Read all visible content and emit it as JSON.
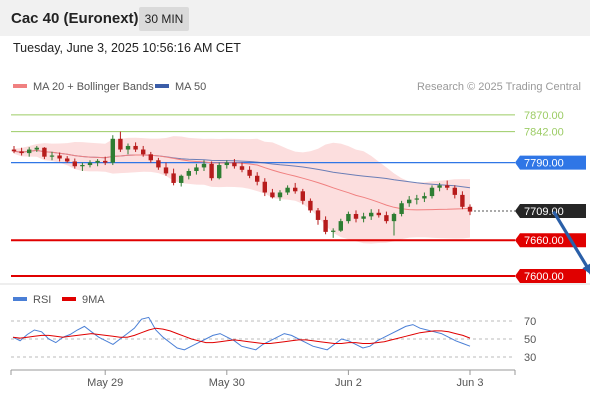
{
  "header": {
    "title": "Cac 40 (Euronext)",
    "timeframe": "30 MIN",
    "datetime": "Tuesday, June 3, 2025 10:56:16 AM CET"
  },
  "colors": {
    "ma20": "#f08080",
    "ma50": "#3b5da8",
    "bollinger_band": "#fbd3d3",
    "resistance_line": "#9ccc65",
    "current_level": "#2f76e6",
    "support_line": "#e00000",
    "price_box": "#262626",
    "arrow": "#2a5fa8",
    "rsi_line": "#4a7fd6",
    "rsi_ma": "#e00000",
    "candle_up": "#2e7d32",
    "candle_down": "#b71c1c"
  },
  "chart_data": [
    {
      "type": "candlestick",
      "instrument": "Cac 40 (Euronext)",
      "interval": "30 MIN",
      "legend": [
        "MA 20 + Bollinger Bands",
        "MA 50"
      ],
      "legend_position": "top-left",
      "source_note": "Research © 2025 Trading Central",
      "ylim": [
        7590,
        7895
      ],
      "x_labels": [
        "May 29",
        "May 30",
        "Jun 2",
        "Jun 3"
      ],
      "x_label_index": [
        12,
        28,
        44,
        60
      ],
      "levels": [
        {
          "label": "7870.00",
          "value": 7870,
          "kind": "resistance"
        },
        {
          "label": "7842.00",
          "value": 7842,
          "kind": "resistance"
        },
        {
          "label": "7790.00",
          "value": 7790,
          "kind": "current"
        },
        {
          "label": "7709.00",
          "value": 7709,
          "kind": "last"
        },
        {
          "label": "7660.00",
          "value": 7660,
          "kind": "support"
        },
        {
          "label": "7600.00",
          "value": 7600,
          "kind": "support"
        }
      ],
      "forecast_arrow": {
        "from_index": 71,
        "from": 7708,
        "to_index": 76,
        "to": 7603
      },
      "candles": [
        [
          7812,
          7818,
          7806,
          7809
        ],
        [
          7809,
          7815,
          7802,
          7806
        ],
        [
          7806,
          7816,
          7800,
          7812
        ],
        [
          7812,
          7818,
          7808,
          7815
        ],
        [
          7815,
          7816,
          7796,
          7800
        ],
        [
          7800,
          7808,
          7794,
          7802
        ],
        [
          7802,
          7807,
          7792,
          7797
        ],
        [
          7797,
          7801,
          7790,
          7792
        ],
        [
          7792,
          7797,
          7780,
          7784
        ],
        [
          7784,
          7790,
          7776,
          7786
        ],
        [
          7786,
          7794,
          7782,
          7790
        ],
        [
          7790,
          7796,
          7784,
          7793
        ],
        [
          7793,
          7800,
          7786,
          7790
        ],
        [
          7790,
          7836,
          7786,
          7830
        ],
        [
          7830,
          7842,
          7808,
          7812
        ],
        [
          7812,
          7822,
          7804,
          7818
        ],
        [
          7818,
          7824,
          7808,
          7812
        ],
        [
          7812,
          7818,
          7800,
          7804
        ],
        [
          7804,
          7808,
          7790,
          7794
        ],
        [
          7794,
          7798,
          7778,
          7782
        ],
        [
          7782,
          7790,
          7768,
          7772
        ],
        [
          7772,
          7780,
          7752,
          7756
        ],
        [
          7756,
          7770,
          7750,
          7768
        ],
        [
          7768,
          7780,
          7762,
          7776
        ],
        [
          7776,
          7788,
          7770,
          7782
        ],
        [
          7782,
          7794,
          7776,
          7788
        ],
        [
          7788,
          7792,
          7760,
          7764
        ],
        [
          7764,
          7790,
          7762,
          7786
        ],
        [
          7786,
          7794,
          7780,
          7790
        ],
        [
          7790,
          7796,
          7780,
          7784
        ],
        [
          7784,
          7790,
          7774,
          7778
        ],
        [
          7778,
          7784,
          7764,
          7768
        ],
        [
          7768,
          7774,
          7752,
          7758
        ],
        [
          7758,
          7764,
          7734,
          7740
        ],
        [
          7740,
          7746,
          7730,
          7732
        ],
        [
          7732,
          7744,
          7726,
          7740
        ],
        [
          7740,
          7752,
          7736,
          7748
        ],
        [
          7748,
          7756,
          7738,
          7742
        ],
        [
          7742,
          7746,
          7720,
          7726
        ],
        [
          7726,
          7730,
          7706,
          7710
        ],
        [
          7710,
          7714,
          7686,
          7694
        ],
        [
          7694,
          7700,
          7670,
          7674
        ],
        [
          7674,
          7680,
          7664,
          7676
        ],
        [
          7676,
          7696,
          7674,
          7692
        ],
        [
          7692,
          7708,
          7688,
          7704
        ],
        [
          7704,
          7710,
          7690,
          7696
        ],
        [
          7696,
          7706,
          7690,
          7700
        ],
        [
          7700,
          7712,
          7694,
          7706
        ],
        [
          7706,
          7712,
          7698,
          7702
        ],
        [
          7702,
          7708,
          7688,
          7692
        ],
        [
          7692,
          7706,
          7668,
          7704
        ],
        [
          7704,
          7726,
          7700,
          7722
        ],
        [
          7722,
          7734,
          7716,
          7728
        ],
        [
          7728,
          7736,
          7720,
          7730
        ],
        [
          7730,
          7740,
          7724,
          7734
        ],
        [
          7734,
          7752,
          7730,
          7748
        ],
        [
          7748,
          7756,
          7742,
          7752
        ],
        [
          7752,
          7760,
          7744,
          7748
        ],
        [
          7748,
          7752,
          7730,
          7736
        ],
        [
          7736,
          7742,
          7712,
          7716
        ],
        [
          7716,
          7720,
          7702,
          7708
        ]
      ]
    },
    {
      "type": "line",
      "name": "RSI",
      "legend": [
        "RSI",
        "9MA"
      ],
      "ylim": [
        20,
        80
      ],
      "y_ticks": [
        70,
        50,
        30
      ],
      "rsi": [
        52,
        48,
        55,
        60,
        58,
        50,
        46,
        52,
        55,
        60,
        64,
        58,
        52,
        48,
        44,
        50,
        56,
        62,
        72,
        74,
        60,
        52,
        46,
        40,
        38,
        42,
        46,
        50,
        54,
        56,
        52,
        48,
        42,
        40,
        38,
        44,
        48,
        52,
        56,
        54,
        50,
        46,
        42,
        40,
        38,
        44,
        50,
        48,
        44,
        40,
        42,
        48,
        52,
        56,
        60,
        64,
        66,
        62,
        60,
        58,
        56,
        52,
        48,
        45,
        42
      ],
      "rsi_ma": [
        52,
        51,
        52,
        53,
        54,
        54,
        53,
        52,
        53,
        54,
        55,
        56,
        55,
        54,
        53,
        52,
        52,
        54,
        57,
        60,
        62,
        61,
        59,
        56,
        53,
        50,
        48,
        46,
        46,
        47,
        48,
        49,
        48,
        47,
        46,
        45,
        45,
        46,
        47,
        48,
        49,
        49,
        48,
        47,
        46,
        45,
        45,
        46,
        46,
        45,
        45,
        46,
        47,
        49,
        51,
        53,
        55,
        57,
        58,
        59,
        59,
        58,
        56,
        54,
        51
      ]
    }
  ]
}
